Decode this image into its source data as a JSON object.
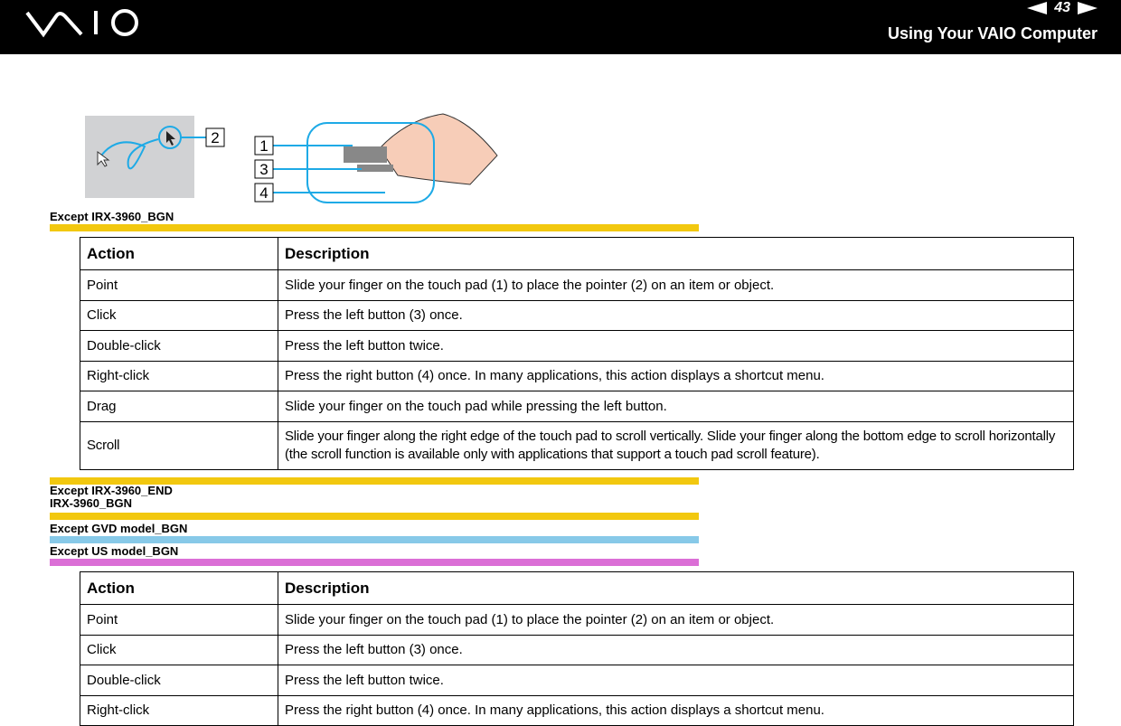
{
  "header": {
    "logo": "VAIO",
    "page_number": "43",
    "section_title": "Using Your VAIO Computer"
  },
  "figure": {
    "callouts": [
      "2",
      "1",
      "3",
      "4"
    ]
  },
  "markers": {
    "m1": "Except IRX-3960_BGN",
    "m2": "Except IRX-3960_END",
    "m3": "IRX-3960_BGN",
    "m4": "Except GVD model_BGN",
    "m5": "Except US model_BGN"
  },
  "colors": {
    "yellow": "#f2c80f",
    "blue": "#87c9e8",
    "pink": "#db6fd6",
    "accent": "#1eaae6"
  },
  "table1": {
    "headers": [
      "Action",
      "Description"
    ],
    "rows": [
      [
        "Point",
        "Slide your finger on the touch pad (1) to place the pointer (2) on an item or object."
      ],
      [
        "Click",
        "Press the left button (3) once."
      ],
      [
        "Double-click",
        "Press the left button twice."
      ],
      [
        "Right-click",
        "Press the right button (4) once. In many applications, this action displays a shortcut menu."
      ],
      [
        "Drag",
        "Slide your finger on the touch pad while pressing the left button."
      ],
      [
        "Scroll",
        "Slide your finger along the right edge of the touch pad to scroll vertically. Slide your finger along the bottom edge to scroll horizontally (the scroll function is available only with applications that support a touch pad scroll feature)."
      ]
    ]
  },
  "table2": {
    "headers": [
      "Action",
      "Description"
    ],
    "rows": [
      [
        "Point",
        "Slide your finger on the touch pad (1) to place the pointer (2) on an item or object."
      ],
      [
        "Click",
        "Press the left button (3) once."
      ],
      [
        "Double-click",
        "Press the left button twice."
      ],
      [
        "Right-click",
        "Press the right button (4) once. In many applications, this action displays a shortcut menu."
      ]
    ]
  }
}
